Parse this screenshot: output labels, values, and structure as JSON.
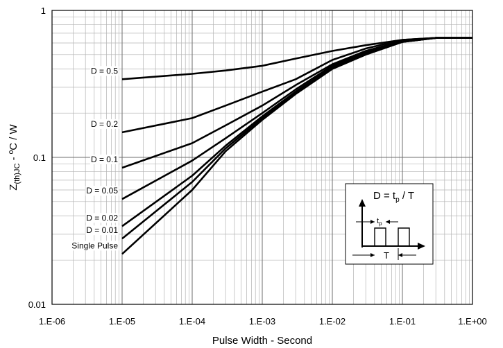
{
  "chart_data": {
    "type": "line",
    "xlabel": "Pulse Width - Second",
    "ylabel_main": "Z",
    "ylabel_sub": "(th)JC",
    "ylabel_rest": " - ºC / W",
    "x_scale": "log",
    "y_scale": "log",
    "xlim": [
      1e-06,
      1
    ],
    "ylim": [
      0.01,
      1
    ],
    "grid": true,
    "x_ticks": [
      {
        "value": 1e-06,
        "label": "1.E-06"
      },
      {
        "value": 1e-05,
        "label": "1.E-05"
      },
      {
        "value": 0.0001,
        "label": "1.E-04"
      },
      {
        "value": 0.001,
        "label": "1.E-03"
      },
      {
        "value": 0.01,
        "label": "1.E-02"
      },
      {
        "value": 0.1,
        "label": "1.E-01"
      },
      {
        "value": 1,
        "label": "1.E+00"
      }
    ],
    "y_ticks": [
      {
        "value": 0.01,
        "label": "0.01"
      },
      {
        "value": 0.1,
        "label": "0.1"
      },
      {
        "value": 1,
        "label": "1"
      }
    ],
    "series": [
      {
        "name": "D = 0.5",
        "x": [
          1e-05,
          0.0001,
          0.0003,
          0.001,
          0.003,
          0.01,
          0.03,
          0.1,
          0.3,
          1
        ],
        "y": [
          0.34,
          0.37,
          0.39,
          0.42,
          0.47,
          0.53,
          0.58,
          0.63,
          0.65,
          0.65
        ]
      },
      {
        "name": "D = 0.2",
        "x": [
          1e-05,
          0.0001,
          0.0003,
          0.001,
          0.003,
          0.01,
          0.03,
          0.1,
          0.3,
          1
        ],
        "y": [
          0.148,
          0.185,
          0.225,
          0.28,
          0.34,
          0.46,
          0.55,
          0.63,
          0.65,
          0.65
        ]
      },
      {
        "name": "D = 0.1",
        "x": [
          1e-05,
          0.0001,
          0.0003,
          0.001,
          0.003,
          0.01,
          0.03,
          0.1,
          0.3,
          1
        ],
        "y": [
          0.085,
          0.125,
          0.165,
          0.225,
          0.31,
          0.43,
          0.53,
          0.62,
          0.65,
          0.65
        ]
      },
      {
        "name": "D = 0.05",
        "x": [
          1e-05,
          0.0001,
          0.0003,
          0.001,
          0.003,
          0.01,
          0.03,
          0.1,
          0.3,
          1
        ],
        "y": [
          0.052,
          0.095,
          0.135,
          0.2,
          0.29,
          0.42,
          0.52,
          0.62,
          0.65,
          0.65
        ]
      },
      {
        "name": "D = 0.02",
        "x": [
          1e-05,
          0.0001,
          0.0003,
          0.001,
          0.003,
          0.01,
          0.03,
          0.1,
          0.3,
          1
        ],
        "y": [
          0.034,
          0.075,
          0.12,
          0.19,
          0.28,
          0.41,
          0.51,
          0.61,
          0.65,
          0.65
        ]
      },
      {
        "name": "D = 0.01",
        "x": [
          1e-05,
          0.0001,
          0.0003,
          0.001,
          0.003,
          0.01,
          0.03,
          0.1,
          0.3,
          1
        ],
        "y": [
          0.028,
          0.068,
          0.115,
          0.185,
          0.275,
          0.405,
          0.51,
          0.61,
          0.65,
          0.65
        ]
      },
      {
        "name": "Single Pulse",
        "x": [
          1e-05,
          0.0001,
          0.0003,
          0.001,
          0.003,
          0.01,
          0.03,
          0.1,
          0.3,
          1
        ],
        "y": [
          0.022,
          0.06,
          0.11,
          0.18,
          0.27,
          0.4,
          0.5,
          0.61,
          0.65,
          0.65
        ]
      }
    ],
    "inset": {
      "title_main": "D = t",
      "title_sub": "p",
      "title_rest": " / T",
      "tp_main": "t",
      "tp_sub": "p",
      "period_label": "T"
    }
  }
}
